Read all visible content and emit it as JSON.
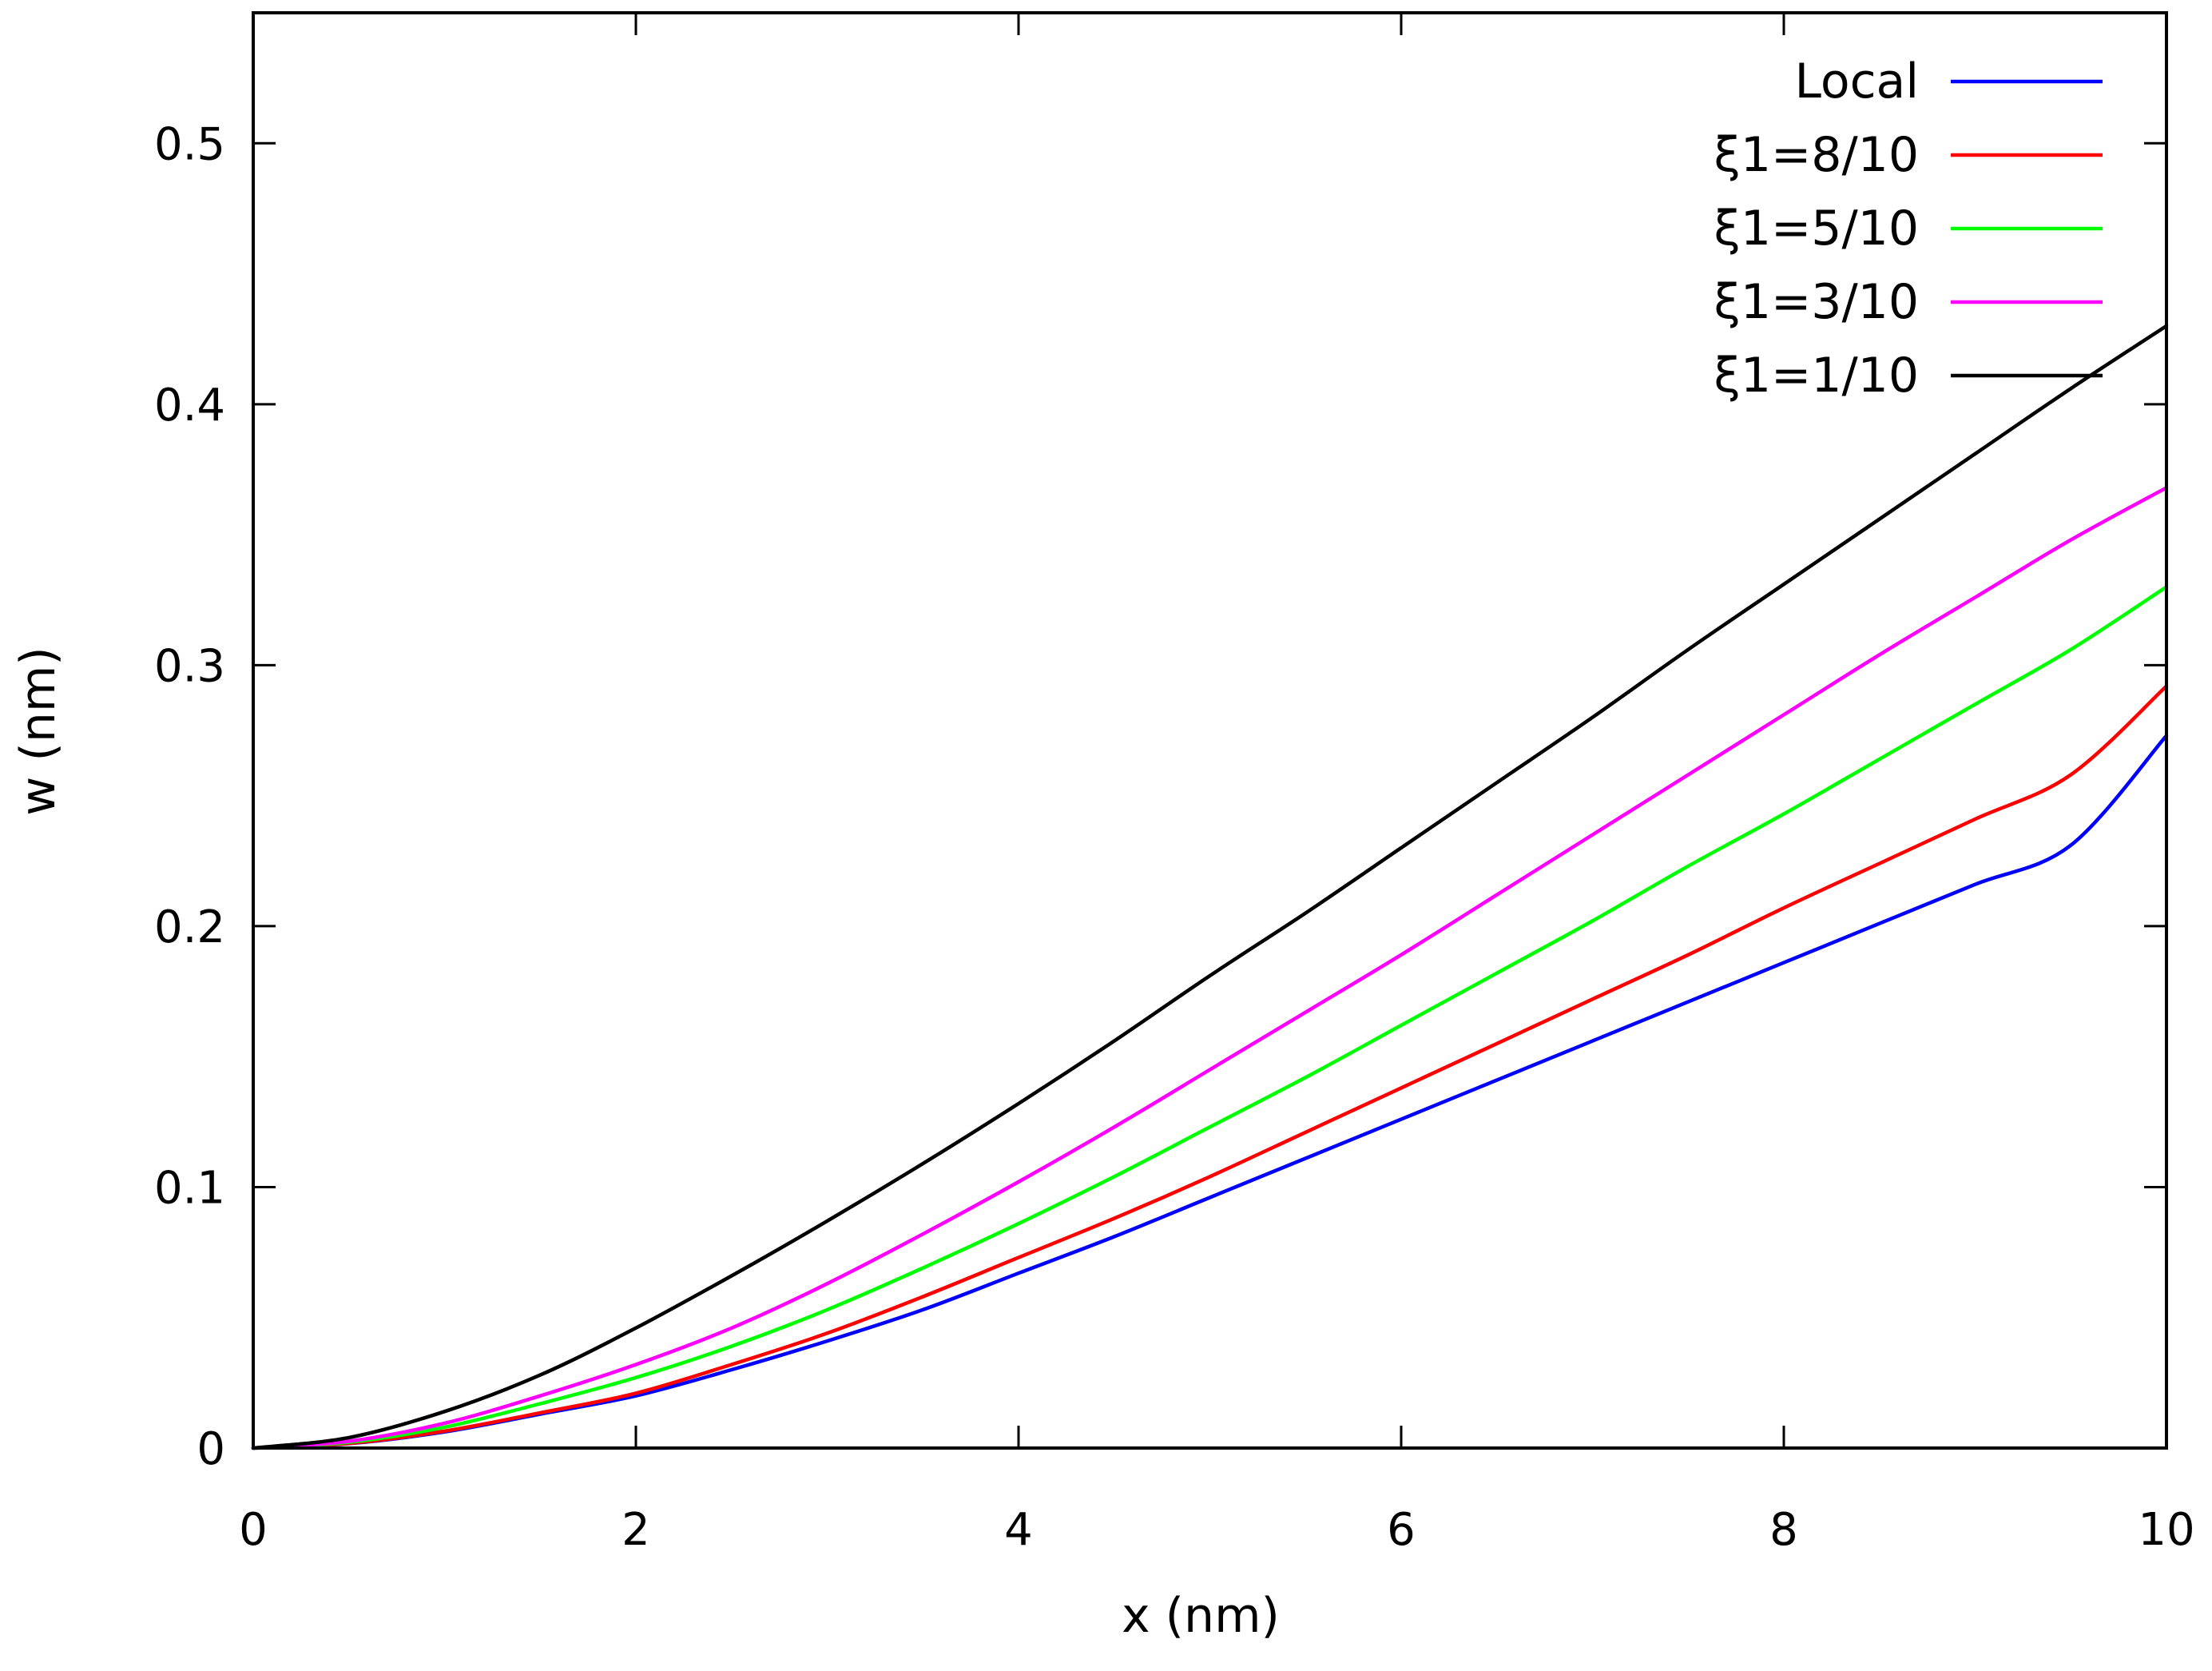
{
  "chart_data": {
    "type": "line",
    "title": "",
    "xlabel": "x (nm)",
    "ylabel": "w (nm)",
    "xlim": [
      0,
      10
    ],
    "ylim": [
      0,
      0.55
    ],
    "grid": false,
    "legend_position": "top-right",
    "x_ticks": [
      0,
      2,
      4,
      6,
      8,
      10
    ],
    "x_tick_labels": [
      "0",
      "2",
      "4",
      "6",
      "8",
      "10"
    ],
    "y_ticks": [
      0,
      0.1,
      0.2,
      0.3,
      0.4,
      0.5
    ],
    "y_tick_labels": [
      "0",
      "0.1",
      "0.2",
      "0.3",
      "0.4",
      "0.5"
    ],
    "x": [
      0,
      0.5,
      1,
      1.5,
      2,
      2.5,
      3,
      3.5,
      4,
      4.5,
      5,
      5.5,
      6,
      6.5,
      7,
      7.5,
      8,
      8.5,
      9,
      9.5,
      10
    ],
    "series": [
      {
        "name": "Local",
        "color": "#0000ff",
        "values": [
          0,
          0.0017,
          0.0062,
          0.013,
          0.02,
          0.03,
          0.041,
          0.053,
          0.067,
          0.081,
          0.096,
          0.111,
          0.126,
          0.141,
          0.156,
          0.171,
          0.186,
          0.201,
          0.216,
          0.231,
          0.273
        ]
      },
      {
        "name": "ξ1=8/10",
        "color": "#ff0000",
        "values": [
          0,
          0.0018,
          0.0065,
          0.0135,
          0.021,
          0.032,
          0.044,
          0.058,
          0.073,
          0.088,
          0.104,
          0.121,
          0.138,
          0.155,
          0.172,
          0.189,
          0.207,
          0.224,
          0.241,
          0.258,
          0.292
        ]
      },
      {
        "name": "ξ1=5/10",
        "color": "#00ff00",
        "values": [
          0,
          0.0022,
          0.008,
          0.017,
          0.027,
          0.039,
          0.053,
          0.069,
          0.086,
          0.104,
          0.123,
          0.142,
          0.162,
          0.182,
          0.202,
          0.223,
          0.243,
          0.264,
          0.285,
          0.306,
          0.33
        ]
      },
      {
        "name": "ξ1=3/10",
        "color": "#ff00ff",
        "values": [
          0,
          0.0026,
          0.0095,
          0.02,
          0.032,
          0.046,
          0.063,
          0.082,
          0.102,
          0.123,
          0.145,
          0.167,
          0.189,
          0.212,
          0.235,
          0.258,
          0.281,
          0.304,
          0.326,
          0.348,
          0.368
        ]
      },
      {
        "name": "ξ1=1/10",
        "color": "#000000",
        "values": [
          0,
          0.004,
          0.014,
          0.028,
          0.046,
          0.066,
          0.087,
          0.109,
          0.132,
          0.156,
          0.181,
          0.205,
          0.23,
          0.255,
          0.28,
          0.306,
          0.331,
          0.356,
          0.381,
          0.406,
          0.43
        ]
      }
    ]
  }
}
